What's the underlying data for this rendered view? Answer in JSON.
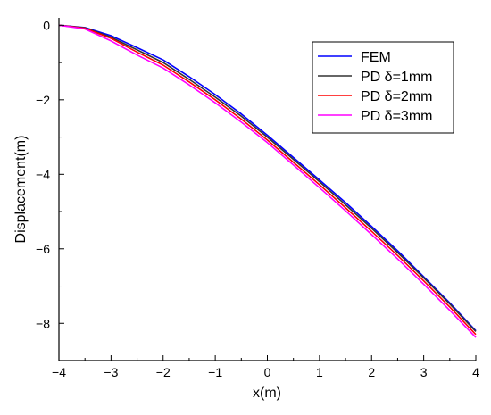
{
  "chart_data": {
    "type": "line",
    "xlabel": "x(m)",
    "ylabel": "Displacement(m)",
    "xlim": [
      -4,
      4
    ],
    "ylim": [
      -9,
      0.2
    ],
    "xticks": [
      -4,
      -3,
      -2,
      -1,
      0,
      1,
      2,
      3,
      4
    ],
    "yticks": [
      0,
      -2,
      -4,
      -6,
      -8
    ],
    "xtick_labels": [
      "−4",
      "−3",
      "−2",
      "−1",
      "0",
      "1",
      "2",
      "3",
      "4"
    ],
    "ytick_labels": [
      "0",
      "−2",
      "−4",
      "−6",
      "−8"
    ],
    "x": [
      -4,
      -3.5,
      -3,
      -2.5,
      -2,
      -1.5,
      -1,
      -0.5,
      0,
      0.5,
      1,
      1.5,
      2,
      2.5,
      3,
      3.5,
      4
    ],
    "series": [
      {
        "name": "FEM",
        "color": "#0000ff",
        "values": [
          0,
          -0.06,
          -0.28,
          -0.6,
          -0.93,
          -1.38,
          -1.86,
          -2.38,
          -2.95,
          -3.55,
          -4.15,
          -4.76,
          -5.4,
          -6.05,
          -6.75,
          -7.45,
          -8.2
        ]
      },
      {
        "name": "PD δ=1mm",
        "color": "#333333",
        "values": [
          0,
          -0.07,
          -0.32,
          -0.66,
          -1.0,
          -1.45,
          -1.93,
          -2.44,
          -3.0,
          -3.6,
          -4.2,
          -4.82,
          -5.45,
          -6.1,
          -6.78,
          -7.48,
          -8.22
        ]
      },
      {
        "name": "PD δ=2mm",
        "color": "#ff0000",
        "values": [
          0,
          -0.08,
          -0.35,
          -0.72,
          -1.07,
          -1.52,
          -2.0,
          -2.52,
          -3.08,
          -3.68,
          -4.28,
          -4.9,
          -5.53,
          -6.18,
          -6.86,
          -7.56,
          -8.3
        ]
      },
      {
        "name": "PD δ=3mm",
        "color": "#ff00ff",
        "values": [
          0,
          -0.1,
          -0.42,
          -0.8,
          -1.15,
          -1.6,
          -2.08,
          -2.6,
          -3.15,
          -3.75,
          -4.36,
          -4.98,
          -5.62,
          -6.27,
          -6.95,
          -7.65,
          -8.38
        ]
      }
    ],
    "legend_position": "top-right",
    "grid": false
  }
}
